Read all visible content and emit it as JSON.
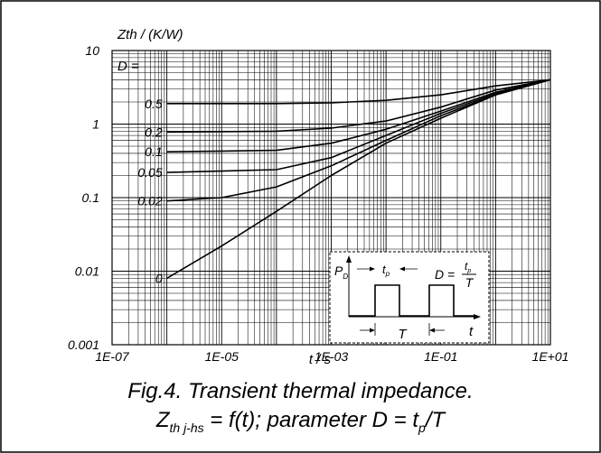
{
  "chart_data": {
    "type": "line",
    "title": "",
    "ylabel": "Zth / (K/W)",
    "xlabel": "t / s",
    "x_scale": "log",
    "y_scale": "log",
    "xlim": [
      1e-07,
      10
    ],
    "ylim": [
      0.001,
      10
    ],
    "x_tick_labels": [
      "1E-07",
      "1E-05",
      "1E-03",
      "1E-01",
      "1E+01"
    ],
    "y_tick_labels": [
      "0.001",
      "0.01",
      "0.1",
      "1",
      "10"
    ],
    "grid": true,
    "parameter_label": "D =",
    "series": [
      {
        "name": "0.5",
        "x": [
          1e-06,
          0.0001,
          0.001,
          0.01,
          0.1,
          1,
          10
        ],
        "y": [
          1.9,
          1.9,
          1.95,
          2.1,
          2.5,
          3.3,
          4.0
        ]
      },
      {
        "name": "0.2",
        "x": [
          1e-06,
          0.0001,
          0.001,
          0.01,
          0.1,
          1,
          10
        ],
        "y": [
          0.78,
          0.8,
          0.88,
          1.1,
          1.7,
          2.9,
          4.0
        ]
      },
      {
        "name": "0.1",
        "x": [
          1e-06,
          0.0001,
          0.001,
          0.01,
          0.1,
          1,
          10
        ],
        "y": [
          0.42,
          0.44,
          0.55,
          0.85,
          1.5,
          2.7,
          4.0
        ]
      },
      {
        "name": "0.05",
        "x": [
          1e-06,
          0.0001,
          0.001,
          0.01,
          0.1,
          1,
          10
        ],
        "y": [
          0.22,
          0.24,
          0.35,
          0.7,
          1.4,
          2.6,
          4.0
        ]
      },
      {
        "name": "0.02",
        "x": [
          1e-06,
          1e-05,
          0.0001,
          0.001,
          0.01,
          0.1,
          1,
          10
        ],
        "y": [
          0.09,
          0.1,
          0.14,
          0.27,
          0.6,
          1.3,
          2.5,
          4.0
        ]
      },
      {
        "name": "0",
        "x": [
          1e-06,
          1e-05,
          0.0001,
          0.001,
          0.01,
          0.1,
          1,
          10
        ],
        "y": [
          0.008,
          0.022,
          0.065,
          0.2,
          0.55,
          1.2,
          2.5,
          4.0
        ]
      }
    ],
    "inset": {
      "P_label": "P",
      "P_sub": "D",
      "tp_label": "t",
      "tp_sub": "p",
      "T_label": "T",
      "t_axis_label": "t",
      "formula_lhs": "D =",
      "formula_num": "t",
      "formula_num_sub": "p",
      "formula_den": "T"
    }
  },
  "caption": {
    "line1": "Fig.4.  Transient thermal impedance.",
    "line2_z": "Z",
    "line2_zsub": "th j-hs",
    "line2_rest": " = f(t); parameter D = t",
    "line2_psub": "p",
    "line2_end": "/T"
  }
}
